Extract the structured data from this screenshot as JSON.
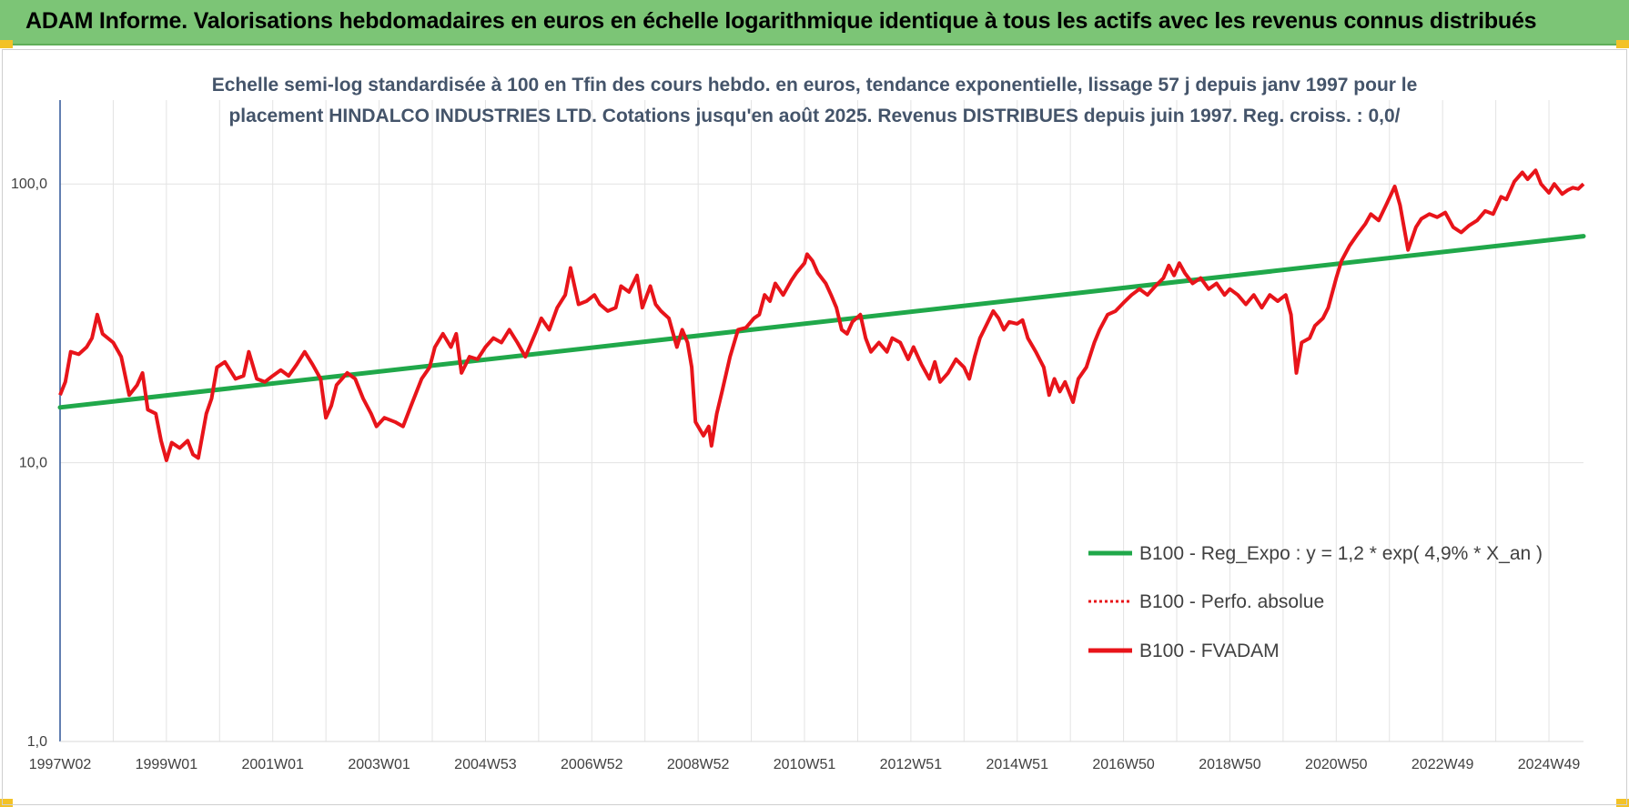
{
  "page_banner": {
    "title": "ADAM Informe. Valorisations hebdomadaires en euros en échelle logarithmique identique à tous les actifs avec les revenus connus distribués"
  },
  "colors": {
    "banner_bg": "#7cc576",
    "fvadam_series": "#e8141a",
    "regression_series": "#20a84a",
    "accent_corners": "#f3c227"
  },
  "chart_data": {
    "type": "line",
    "subtitle_lines": [
      "Echelle semi-log standardisée à 100 en Tfin des cours hebdo. en euros, tendance exponentielle, lissage 57 j depuis janv 1997 pour le",
      "placement HINDALCO INDUSTRIES LTD. Cotations jusqu'en août 2025. Revenus DISTRIBUES depuis juin 1997. Reg. croiss. : 0,0/"
    ],
    "y_scale": "log",
    "ylim": [
      1,
      200
    ],
    "y_ticks": [
      {
        "value": 100,
        "label": "100,0"
      },
      {
        "value": 10,
        "label": "10,0"
      },
      {
        "value": 1,
        "label": "1,0"
      }
    ],
    "x_range": [
      1997.0,
      2025.65
    ],
    "x_ticks": [
      {
        "x": 1997.0,
        "label": "1997W02"
      },
      {
        "x": 1999.0,
        "label": "1999W01"
      },
      {
        "x": 2001.0,
        "label": "2001W01"
      },
      {
        "x": 2003.0,
        "label": "2003W01"
      },
      {
        "x": 2005.0,
        "label": "2004W53"
      },
      {
        "x": 2007.0,
        "label": "2006W52"
      },
      {
        "x": 2009.0,
        "label": "2008W52"
      },
      {
        "x": 2011.0,
        "label": "2010W51"
      },
      {
        "x": 2013.0,
        "label": "2012W51"
      },
      {
        "x": 2015.0,
        "label": "2014W51"
      },
      {
        "x": 2017.0,
        "label": "2016W50"
      },
      {
        "x": 2019.0,
        "label": "2018W50"
      },
      {
        "x": 2021.0,
        "label": "2020W50"
      },
      {
        "x": 2023.0,
        "label": "2022W49"
      },
      {
        "x": 2025.0,
        "label": "2024W49"
      }
    ],
    "grid": true,
    "legend_position": "bottom-right",
    "series": [
      {
        "name": "B100 - Reg_Expo : y = 1,2 * exp( 4,9% *  X_an )",
        "style": "solid-thick",
        "color": "#20a84a",
        "points": [
          [
            1997.0,
            15.8
          ],
          [
            2025.65,
            65.0
          ]
        ]
      },
      {
        "name": "B100 - Perfo. absolue",
        "style": "dotted",
        "color": "#e8141a",
        "points": []
      },
      {
        "name": "B100 - FVADAM",
        "style": "solid-thick",
        "color": "#e8141a",
        "points": [
          [
            1997.0,
            17.5
          ],
          [
            1997.1,
            19.5
          ],
          [
            1997.2,
            25.0
          ],
          [
            1997.35,
            24.5
          ],
          [
            1997.5,
            26.0
          ],
          [
            1997.6,
            28.0
          ],
          [
            1997.7,
            34.0
          ],
          [
            1997.8,
            29.0
          ],
          [
            1998.0,
            27.0
          ],
          [
            1998.15,
            24.0
          ],
          [
            1998.3,
            17.5
          ],
          [
            1998.45,
            19.0
          ],
          [
            1998.55,
            21.0
          ],
          [
            1998.65,
            15.5
          ],
          [
            1998.8,
            15.0
          ],
          [
            1998.9,
            12.0
          ],
          [
            1999.0,
            10.2
          ],
          [
            1999.1,
            11.8
          ],
          [
            1999.25,
            11.3
          ],
          [
            1999.4,
            12.0
          ],
          [
            1999.5,
            10.7
          ],
          [
            1999.6,
            10.4
          ],
          [
            1999.75,
            15.0
          ],
          [
            1999.85,
            17.0
          ],
          [
            1999.95,
            22.0
          ],
          [
            2000.1,
            23.0
          ],
          [
            2000.3,
            20.0
          ],
          [
            2000.45,
            20.5
          ],
          [
            2000.55,
            25.0
          ],
          [
            2000.7,
            20.0
          ],
          [
            2000.85,
            19.5
          ],
          [
            2001.0,
            20.5
          ],
          [
            2001.15,
            21.5
          ],
          [
            2001.3,
            20.5
          ],
          [
            2001.45,
            22.5
          ],
          [
            2001.6,
            25.0
          ],
          [
            2001.75,
            22.5
          ],
          [
            2001.9,
            20.0
          ],
          [
            2002.0,
            14.5
          ],
          [
            2002.1,
            16.0
          ],
          [
            2002.2,
            19.0
          ],
          [
            2002.4,
            21.0
          ],
          [
            2002.55,
            20.0
          ],
          [
            2002.7,
            17.0
          ],
          [
            2002.85,
            15.0
          ],
          [
            2002.95,
            13.5
          ],
          [
            2003.1,
            14.5
          ],
          [
            2003.3,
            14.0
          ],
          [
            2003.45,
            13.5
          ],
          [
            2003.6,
            16.0
          ],
          [
            2003.8,
            20.0
          ],
          [
            2003.95,
            22.0
          ],
          [
            2004.05,
            26.0
          ],
          [
            2004.2,
            29.0
          ],
          [
            2004.35,
            26.0
          ],
          [
            2004.45,
            29.0
          ],
          [
            2004.55,
            21.0
          ],
          [
            2004.7,
            24.0
          ],
          [
            2004.85,
            23.5
          ],
          [
            2005.0,
            26.0
          ],
          [
            2005.15,
            28.0
          ],
          [
            2005.3,
            27.0
          ],
          [
            2005.45,
            30.0
          ],
          [
            2005.6,
            27.0
          ],
          [
            2005.75,
            24.0
          ],
          [
            2005.95,
            29.5
          ],
          [
            2006.05,
            33.0
          ],
          [
            2006.2,
            30.0
          ],
          [
            2006.35,
            36.0
          ],
          [
            2006.5,
            40.0
          ],
          [
            2006.6,
            50.0
          ],
          [
            2006.75,
            37.0
          ],
          [
            2006.9,
            38.0
          ],
          [
            2007.05,
            40.0
          ],
          [
            2007.15,
            37.0
          ],
          [
            2007.3,
            35.0
          ],
          [
            2007.45,
            36.0
          ],
          [
            2007.55,
            43.0
          ],
          [
            2007.7,
            41.0
          ],
          [
            2007.85,
            47.0
          ],
          [
            2007.95,
            36.0
          ],
          [
            2008.1,
            43.0
          ],
          [
            2008.2,
            37.0
          ],
          [
            2008.3,
            35.0
          ],
          [
            2008.45,
            33.0
          ],
          [
            2008.6,
            26.0
          ],
          [
            2008.7,
            30.0
          ],
          [
            2008.8,
            27.0
          ],
          [
            2008.88,
            22.0
          ],
          [
            2008.95,
            14.0
          ],
          [
            2009.1,
            12.5
          ],
          [
            2009.2,
            13.5
          ],
          [
            2009.25,
            11.5
          ],
          [
            2009.35,
            15.0
          ],
          [
            2009.45,
            18.0
          ],
          [
            2009.6,
            24.0
          ],
          [
            2009.75,
            30.0
          ],
          [
            2009.9,
            30.5
          ],
          [
            2010.05,
            33.0
          ],
          [
            2010.15,
            34.0
          ],
          [
            2010.25,
            40.0
          ],
          [
            2010.35,
            38.0
          ],
          [
            2010.45,
            44.0
          ],
          [
            2010.6,
            40.0
          ],
          [
            2010.75,
            45.0
          ],
          [
            2010.85,
            48.0
          ],
          [
            2011.0,
            52.0
          ],
          [
            2011.05,
            56.0
          ],
          [
            2011.15,
            53.0
          ],
          [
            2011.25,
            48.0
          ],
          [
            2011.4,
            44.0
          ],
          [
            2011.5,
            40.0
          ],
          [
            2011.6,
            36.0
          ],
          [
            2011.7,
            30.0
          ],
          [
            2011.8,
            29.0
          ],
          [
            2011.9,
            32.0
          ],
          [
            2012.05,
            34.0
          ],
          [
            2012.15,
            28.0
          ],
          [
            2012.25,
            25.0
          ],
          [
            2012.4,
            27.0
          ],
          [
            2012.55,
            25.0
          ],
          [
            2012.65,
            28.0
          ],
          [
            2012.8,
            27.0
          ],
          [
            2012.95,
            23.5
          ],
          [
            2013.05,
            26.0
          ],
          [
            2013.2,
            22.5
          ],
          [
            2013.35,
            20.0
          ],
          [
            2013.45,
            23.0
          ],
          [
            2013.55,
            19.5
          ],
          [
            2013.7,
            21.0
          ],
          [
            2013.85,
            23.5
          ],
          [
            2014.0,
            22.0
          ],
          [
            2014.1,
            20.0
          ],
          [
            2014.2,
            24.0
          ],
          [
            2014.3,
            28.0
          ],
          [
            2014.45,
            32.0
          ],
          [
            2014.55,
            35.0
          ],
          [
            2014.65,
            33.0
          ],
          [
            2014.75,
            30.0
          ],
          [
            2014.85,
            32.0
          ],
          [
            2015.0,
            31.5
          ],
          [
            2015.1,
            32.5
          ],
          [
            2015.2,
            28.0
          ],
          [
            2015.35,
            25.0
          ],
          [
            2015.5,
            22.0
          ],
          [
            2015.6,
            17.5
          ],
          [
            2015.7,
            20.0
          ],
          [
            2015.8,
            18.0
          ],
          [
            2015.9,
            19.5
          ],
          [
            2016.05,
            16.5
          ],
          [
            2016.15,
            20.0
          ],
          [
            2016.3,
            22.0
          ],
          [
            2016.45,
            27.0
          ],
          [
            2016.55,
            30.0
          ],
          [
            2016.7,
            34.0
          ],
          [
            2016.85,
            35.0
          ],
          [
            2017.0,
            37.5
          ],
          [
            2017.15,
            40.0
          ],
          [
            2017.3,
            42.0
          ],
          [
            2017.45,
            40.0
          ],
          [
            2017.6,
            43.0
          ],
          [
            2017.75,
            46.0
          ],
          [
            2017.85,
            51.0
          ],
          [
            2017.95,
            47.0
          ],
          [
            2018.05,
            52.0
          ],
          [
            2018.15,
            48.0
          ],
          [
            2018.3,
            44.0
          ],
          [
            2018.45,
            46.0
          ],
          [
            2018.6,
            42.0
          ],
          [
            2018.75,
            44.0
          ],
          [
            2018.9,
            40.0
          ],
          [
            2019.0,
            42.0
          ],
          [
            2019.15,
            40.0
          ],
          [
            2019.3,
            37.0
          ],
          [
            2019.45,
            40.0
          ],
          [
            2019.6,
            36.0
          ],
          [
            2019.75,
            40.0
          ],
          [
            2019.9,
            38.0
          ],
          [
            2020.05,
            40.0
          ],
          [
            2020.15,
            34.0
          ],
          [
            2020.25,
            21.0
          ],
          [
            2020.35,
            27.0
          ],
          [
            2020.5,
            28.0
          ],
          [
            2020.6,
            31.0
          ],
          [
            2020.75,
            33.0
          ],
          [
            2020.85,
            36.0
          ],
          [
            2021.0,
            46.0
          ],
          [
            2021.1,
            53.0
          ],
          [
            2021.25,
            60.0
          ],
          [
            2021.4,
            66.0
          ],
          [
            2021.55,
            72.0
          ],
          [
            2021.65,
            78.0
          ],
          [
            2021.8,
            74.0
          ],
          [
            2021.95,
            85.0
          ],
          [
            2022.1,
            98.0
          ],
          [
            2022.2,
            84.0
          ],
          [
            2022.35,
            58.0
          ],
          [
            2022.5,
            70.0
          ],
          [
            2022.6,
            75.0
          ],
          [
            2022.75,
            78.0
          ],
          [
            2022.9,
            76.0
          ],
          [
            2023.05,
            79.0
          ],
          [
            2023.2,
            70.0
          ],
          [
            2023.35,
            67.0
          ],
          [
            2023.5,
            71.0
          ],
          [
            2023.65,
            74.0
          ],
          [
            2023.8,
            80.0
          ],
          [
            2023.95,
            78.0
          ],
          [
            2024.1,
            90.0
          ],
          [
            2024.2,
            88.0
          ],
          [
            2024.35,
            102.0
          ],
          [
            2024.5,
            110.0
          ],
          [
            2024.6,
            104.0
          ],
          [
            2024.75,
            112.0
          ],
          [
            2024.85,
            100.0
          ],
          [
            2025.0,
            93.0
          ],
          [
            2025.1,
            100.0
          ],
          [
            2025.25,
            92.0
          ],
          [
            2025.35,
            95.0
          ],
          [
            2025.45,
            97.0
          ],
          [
            2025.55,
            96.0
          ],
          [
            2025.65,
            100.0
          ]
        ]
      }
    ]
  }
}
